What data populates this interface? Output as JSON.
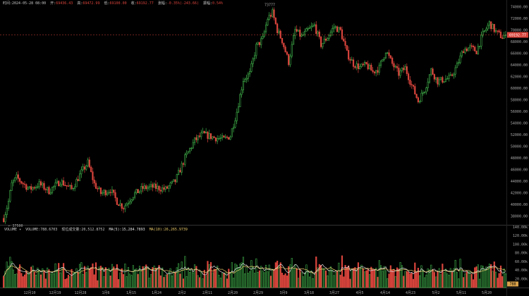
{
  "header": {
    "time_label": "时间:",
    "time_value": "2024-05-28 08:00",
    "open_label": "开:",
    "open_value": "69436.43",
    "high_label": "高:",
    "high_value": "69472.99",
    "low_label": "低:",
    "low_value": "69100.00",
    "close_label": "收:",
    "close_value": "69192.77",
    "change_label": "涨幅:",
    "change_value": "-0.35%(-243.66)",
    "amp_label": "振幅:",
    "amp_value": "0.54%"
  },
  "volume_header": {
    "title": "VOLUME",
    "volume_label": "VOLUME:",
    "volume_value": "788.6703",
    "quote_label": "现位成交量:",
    "quote_value": "20,512.8752",
    "ma5_label": "MA(5):",
    "ma5_value": "15,284.7893",
    "ma10_label": "MA(10):",
    "ma10_value": "26,265.9739"
  },
  "chart_data": {
    "type": "candlestick",
    "price_ticks": [
      38000,
      40000,
      42000,
      44000,
      46000,
      48000,
      50000,
      52000,
      54000,
      56000,
      58000,
      60000,
      62000,
      64000,
      66000,
      68000,
      70000,
      72000,
      74000
    ],
    "price_ylim": [
      36600,
      75200
    ],
    "volume_ticks": [
      "20.00k",
      "40.00k",
      "60.00k",
      "80.00k",
      "100.00k",
      "120.00k",
      "140.00k"
    ],
    "volume_ylim": [
      0,
      140000
    ],
    "x_ticks": [
      "12月10",
      "12月19",
      "12月28",
      "1月6",
      "1月15",
      "1月24",
      "2月2",
      "2月11",
      "2月20",
      "2月29",
      "3月9",
      "3月18",
      "3月27",
      "4月5",
      "4月14",
      "4月23",
      "5月2",
      "5月11",
      "5月20"
    ],
    "high_marker": "73777",
    "low_marker": "37500",
    "last_price": "69192.77",
    "volume_badge": "788",
    "price_anchors": [
      [
        0,
        37600
      ],
      [
        3,
        40500
      ],
      [
        5,
        43500
      ],
      [
        8,
        44600
      ],
      [
        12,
        43600
      ],
      [
        16,
        42600
      ],
      [
        22,
        43500
      ],
      [
        28,
        42300
      ],
      [
        35,
        44000
      ],
      [
        42,
        42600
      ],
      [
        48,
        45500
      ],
      [
        52,
        47200
      ],
      [
        56,
        43500
      ],
      [
        60,
        41900
      ],
      [
        66,
        42500
      ],
      [
        70,
        40500
      ],
      [
        74,
        39500
      ],
      [
        80,
        41600
      ],
      [
        86,
        42800
      ],
      [
        92,
        43000
      ],
      [
        100,
        42600
      ],
      [
        106,
        44000
      ],
      [
        112,
        48000
      ],
      [
        118,
        51000
      ],
      [
        123,
        52100
      ],
      [
        130,
        51500
      ],
      [
        136,
        51200
      ],
      [
        140,
        51800
      ],
      [
        144,
        56000
      ],
      [
        148,
        61500
      ],
      [
        152,
        62500
      ],
      [
        156,
        67200
      ],
      [
        160,
        68500
      ],
      [
        163,
        72000
      ],
      [
        166,
        73000
      ],
      [
        169,
        70000
      ],
      [
        172,
        68200
      ],
      [
        176,
        64500
      ],
      [
        180,
        70000
      ],
      [
        184,
        68900
      ],
      [
        188,
        70000
      ],
      [
        192,
        70800
      ],
      [
        196,
        67500
      ],
      [
        200,
        68800
      ],
      [
        204,
        70600
      ],
      [
        208,
        69900
      ],
      [
        212,
        66000
      ],
      [
        216,
        64200
      ],
      [
        220,
        63600
      ],
      [
        224,
        64000
      ],
      [
        228,
        62800
      ],
      [
        232,
        63500
      ],
      [
        236,
        66500
      ],
      [
        240,
        64200
      ],
      [
        244,
        62500
      ],
      [
        248,
        63500
      ],
      [
        252,
        60500
      ],
      [
        256,
        57800
      ],
      [
        260,
        59800
      ],
      [
        264,
        63100
      ],
      [
        268,
        61200
      ],
      [
        272,
        61500
      ],
      [
        276,
        61800
      ],
      [
        280,
        63900
      ],
      [
        284,
        66700
      ],
      [
        288,
        67000
      ],
      [
        292,
        66400
      ],
      [
        296,
        69300
      ],
      [
        300,
        71200
      ],
      [
        304,
        69700
      ],
      [
        308,
        68800
      ],
      [
        310,
        69193
      ]
    ]
  }
}
